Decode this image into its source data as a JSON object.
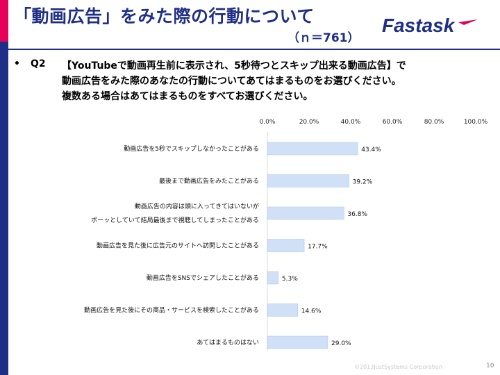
{
  "header": {
    "title": "「動画広告」をみた際の行動について",
    "sample": "（ｎ＝761）",
    "logo_text": "Fastask"
  },
  "question": {
    "bullet": "•",
    "tag": "Q2",
    "lines": [
      "【YouTubeで動画再生前に表示され、5秒待つとスキップ出来る動画広告】で",
      "動画広告をみた際のあなたの行動についてあてはまるものをお選びください。",
      "複数ある場合はあてはまるものをすべてお選びください。"
    ]
  },
  "chart_data": {
    "type": "bar",
    "orientation": "horizontal",
    "categories": [
      [
        "動画広告を5秒でスキップしなかったことがある"
      ],
      [
        "最後まで動画広告をみたことがある"
      ],
      [
        "動画広告の内容は頭に入ってきてはいないが",
        "ボーッとしていて結局最後まで視聴してしまったことがある"
      ],
      [
        "動画広告を見た後に広告元のサイトへ訪問したことがある"
      ],
      [
        "動画広告をSNSでシェアしたことがある"
      ],
      [
        "動画広告を見た後にその商品・サービスを検索したことがある"
      ],
      [
        "あてはまるものはない"
      ]
    ],
    "values": [
      43.4,
      39.2,
      36.8,
      17.7,
      5.3,
      14.6,
      29.0
    ],
    "value_labels": [
      "43.4%",
      "39.2%",
      "36.8%",
      "17.7%",
      "5.3%",
      "14.6%",
      "29.0%"
    ],
    "xlim": [
      0,
      100
    ],
    "ticks": [
      "0.0%",
      "20.0%",
      "40.0%",
      "60.0%",
      "80.0%",
      "100.0%"
    ],
    "bar_color": "#cfe0f7",
    "bar_border": "#a9c4ea",
    "grid": false
  },
  "footer": {
    "copyright": "©2013JustSystems Corporation",
    "page": "10"
  },
  "colors": {
    "brand_navy": "#1f2f86",
    "brand_pink": "#e6005a"
  }
}
